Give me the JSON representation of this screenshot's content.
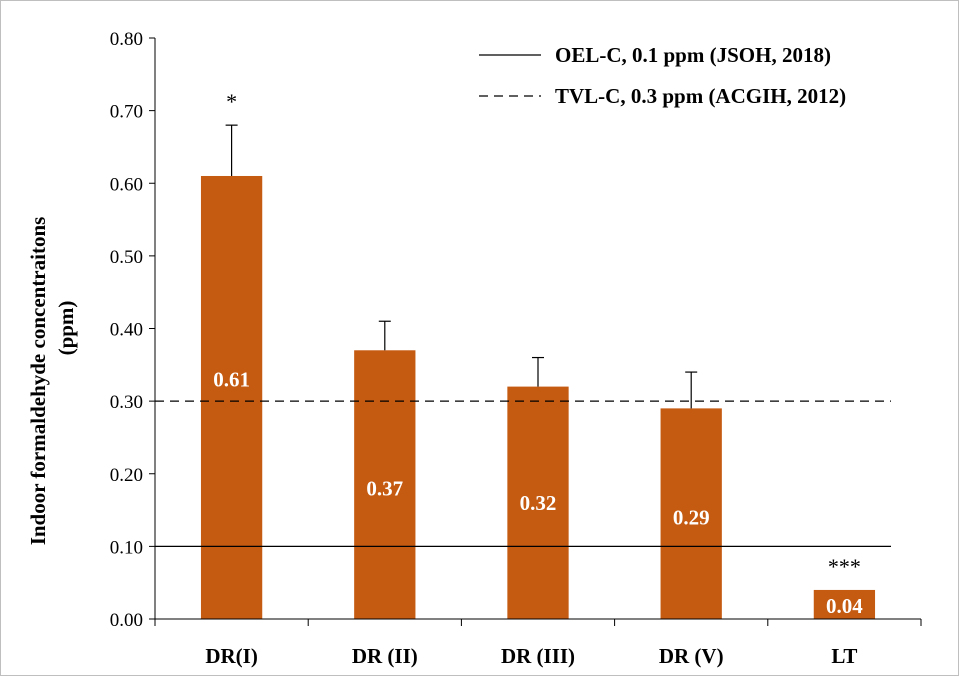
{
  "chart_data": {
    "type": "bar",
    "categories": [
      "DR(I)",
      "DR (II)",
      "DR (III)",
      "DR (V)",
      "LT"
    ],
    "values": [
      0.61,
      0.37,
      0.32,
      0.29,
      0.04
    ],
    "errors": [
      0.07,
      0.04,
      0.04,
      0.05,
      0.0
    ],
    "value_labels": [
      "0.61",
      "0.37",
      "0.32",
      "0.29",
      "0.04"
    ],
    "significance": [
      "*",
      "",
      "",
      "",
      "***"
    ],
    "ylabel_line1": "Indoor formaldehyde concentraitons",
    "ylabel_line2": "(ppm)",
    "ylim": [
      0,
      0.8
    ],
    "yticks": [
      "0.00",
      "0.10",
      "0.20",
      "0.30",
      "0.40",
      "0.50",
      "0.60",
      "0.70",
      "0.80"
    ],
    "bar_color": "#c55a11",
    "reference_lines": [
      {
        "name": "OEL-C, 0.1 ppm (JSOH, 2018)",
        "value": 0.1,
        "style": "solid"
      },
      {
        "name": "TVL-C, 0.3 ppm  (ACGIH, 2012)",
        "value": 0.3,
        "style": "dashed"
      }
    ],
    "legend_position": "top-right",
    "grid": false
  }
}
